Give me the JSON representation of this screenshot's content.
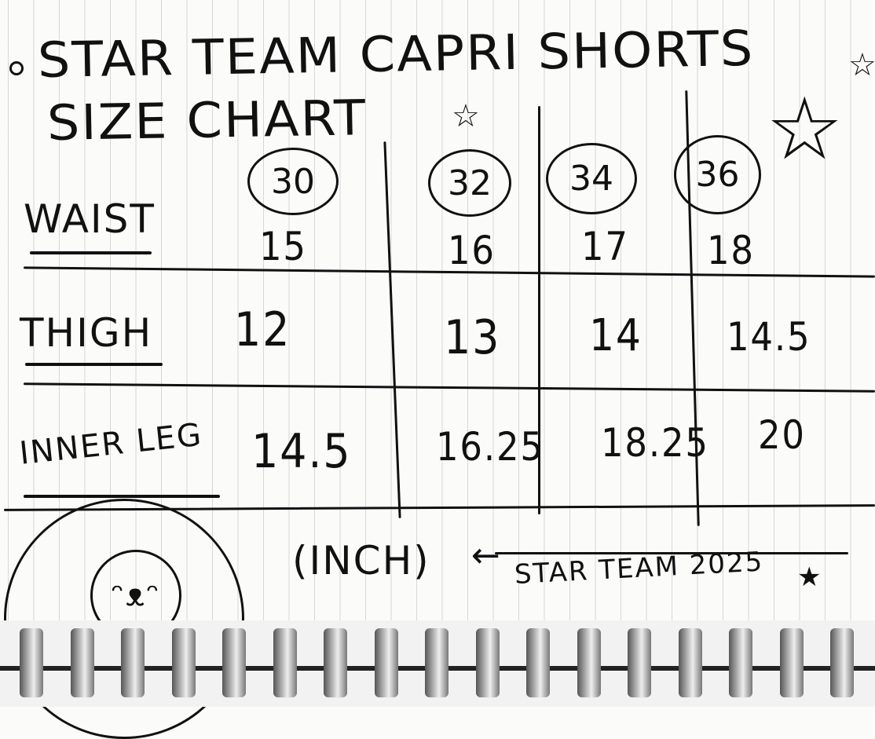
{
  "title": {
    "line1": "STAR TEAM CAPRI SHORTS",
    "line2": "SIZE CHART"
  },
  "table": {
    "sizes": [
      "30",
      "32",
      "34",
      "36"
    ],
    "rows": [
      {
        "label": "WAIST",
        "values": [
          "15",
          "16",
          "17",
          "18"
        ]
      },
      {
        "label": "THIGH",
        "values": [
          "12",
          "13",
          "14",
          "14.5"
        ]
      },
      {
        "label": "INNER LEG",
        "values": [
          "14.5",
          "16.25",
          "18.25",
          "20"
        ]
      }
    ]
  },
  "unit": "(INCH)",
  "signature": "STAR TEAM 2025",
  "icons": [
    "star-icon",
    "bullet-dot-icon",
    "arrow-left-icon",
    "smiley-drawing-icon",
    "spiral-binding"
  ]
}
